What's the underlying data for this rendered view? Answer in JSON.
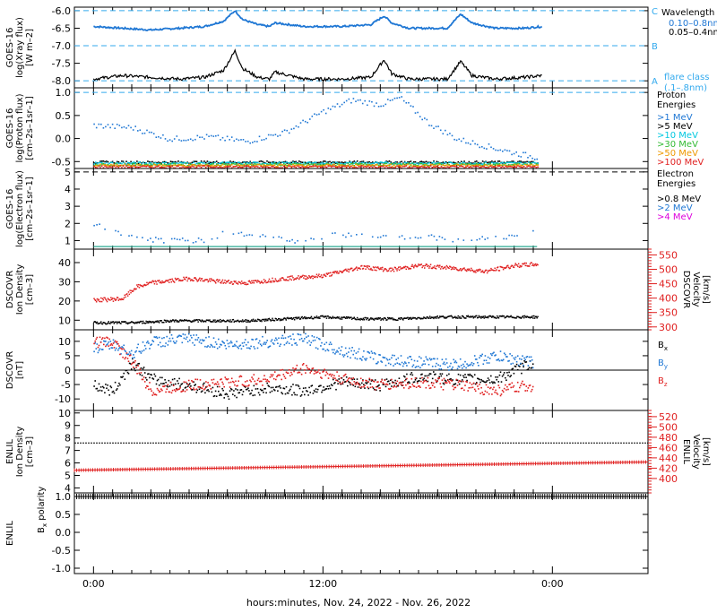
{
  "colors": {
    "black": "#000000",
    "blue": "#1f77d4",
    "lightblue": "#33aaee",
    "cyan": "#00c8e0",
    "green": "#33bb33",
    "orange": "#ee9900",
    "red": "#e02020",
    "magenta": "#dd00dd"
  },
  "x_axis": {
    "label": "hours:minutes, Nov. 24, 2022 - Nov. 26, 2022",
    "ticks": [
      "0:00",
      "12:00",
      "0:00"
    ],
    "range_hours": [
      -1,
      29
    ]
  },
  "chart_data": [
    {
      "id": "xray",
      "type": "line",
      "ylabel": [
        "GOES-16",
        "log(Xray flux)",
        "[W m–2]"
      ],
      "yticks": [
        "-6.0",
        "-6.5",
        "-7.0",
        "-7.5",
        "-8.0"
      ],
      "ylim": [
        -8.2,
        -5.9
      ],
      "legend_title": "Wavelength",
      "flare_classes": [
        {
          "label": "C",
          "value": -6.0
        },
        {
          "label": "B",
          "value": -7.0
        },
        {
          "label": "A",
          "value": -8.0
        }
      ],
      "flare_note": [
        "flare class",
        "(.1–.8nm)"
      ],
      "series": [
        {
          "name": "0.10–0.8nm",
          "color_key": "blue",
          "x": [
            0,
            1.5,
            3,
            4.5,
            5.8,
            6.8,
            7.4,
            7.8,
            8.6,
            9.2,
            9.5,
            11,
            13,
            14.5,
            15.2,
            15.6,
            16.5,
            18.5,
            19.2,
            19.8,
            21,
            22.5,
            23.5
          ],
          "y": [
            -6.45,
            -6.5,
            -6.55,
            -6.5,
            -6.45,
            -6.3,
            -6.0,
            -6.25,
            -6.4,
            -6.45,
            -6.35,
            -6.45,
            -6.45,
            -6.4,
            -6.15,
            -6.35,
            -6.5,
            -6.5,
            -6.1,
            -6.35,
            -6.5,
            -6.5,
            -6.45
          ]
        },
        {
          "name": "0.05–0.4nm",
          "color_key": "black",
          "x": [
            0,
            1.5,
            3,
            4.5,
            5.8,
            6.8,
            7.4,
            7.8,
            8.6,
            9.2,
            9.5,
            11,
            13,
            14.5,
            15.2,
            15.6,
            16.5,
            18.5,
            19.2,
            19.8,
            21,
            22.5,
            23.5
          ],
          "y": [
            -7.95,
            -7.85,
            -7.9,
            -7.95,
            -7.9,
            -7.7,
            -7.15,
            -7.65,
            -7.9,
            -7.95,
            -7.75,
            -7.95,
            -7.95,
            -7.9,
            -7.4,
            -7.8,
            -7.95,
            -7.95,
            -7.45,
            -7.85,
            -7.95,
            -7.9,
            -7.85
          ]
        }
      ]
    },
    {
      "id": "proton",
      "type": "scatter",
      "ylabel": [
        "GOES-16",
        "log(Proton flux)",
        "[cm–2s–1sr–1]"
      ],
      "yticks": [
        "1.0",
        "0.5",
        "0.0",
        "-0.5"
      ],
      "ylim": [
        -0.65,
        1.1
      ],
      "legend_title": [
        "Proton",
        "Energies"
      ],
      "series": [
        {
          "name": ">1 MeV",
          "color_key": "blue",
          "x": [
            0,
            2,
            4,
            6,
            8,
            10,
            12,
            13.5,
            15,
            16,
            17.5,
            19,
            20.5,
            22,
            23.2
          ],
          "y": [
            0.3,
            0.25,
            0.0,
            0.05,
            -0.05,
            0.15,
            0.6,
            0.85,
            0.75,
            0.9,
            0.35,
            0.0,
            -0.15,
            -0.3,
            -0.4
          ]
        },
        {
          "name": ">5 MeV",
          "color_key": "black",
          "x": [
            0,
            4,
            8,
            12,
            16,
            20,
            23.2
          ],
          "y": [
            -0.5,
            -0.5,
            -0.5,
            -0.5,
            -0.5,
            -0.5,
            -0.5
          ]
        },
        {
          "name": ">10 MeV",
          "color_key": "cyan",
          "x": [
            0,
            4,
            8,
            12,
            16,
            20,
            23.2
          ],
          "y": [
            -0.52,
            -0.52,
            -0.52,
            -0.52,
            -0.52,
            -0.52,
            -0.52
          ]
        },
        {
          "name": ">30 MeV",
          "color_key": "green",
          "x": [
            0,
            4,
            8,
            12,
            16,
            20,
            23.2
          ],
          "y": [
            -0.55,
            -0.55,
            -0.55,
            -0.55,
            -0.55,
            -0.55,
            -0.55
          ]
        },
        {
          "name": ">50 MeV",
          "color_key": "orange",
          "x": [
            0,
            4,
            8,
            12,
            16,
            20,
            23.2
          ],
          "y": [
            -0.57,
            -0.57,
            -0.57,
            -0.57,
            -0.57,
            -0.57,
            -0.57
          ]
        },
        {
          "name": ">100 MeV",
          "color_key": "red",
          "x": [
            0,
            4,
            8,
            12,
            16,
            20,
            23.2
          ],
          "y": [
            -0.6,
            -0.6,
            -0.6,
            -0.6,
            -0.6,
            -0.6,
            -0.6
          ]
        }
      ]
    },
    {
      "id": "electron",
      "type": "scatter",
      "ylabel": [
        "GOES-16",
        "log(Electron flux)",
        "[cm–2s–1sr–1]"
      ],
      "yticks": [
        "5",
        "4",
        "3",
        "2",
        "1"
      ],
      "ylim": [
        0.5,
        5.2
      ],
      "legend_title": [
        "Electron",
        "Energies"
      ],
      "threshold": 5.0,
      "series": [
        {
          "name": ">0.8 MeV",
          "color_key": "black",
          "x": [],
          "y": []
        },
        {
          "name": ">2 MeV",
          "color_key": "blue",
          "x": [
            0,
            0.5,
            2,
            4,
            6,
            7,
            9,
            11,
            12.5,
            15,
            17,
            19,
            21,
            23
          ],
          "y": [
            2.0,
            1.8,
            1.2,
            1.0,
            1.1,
            1.6,
            1.2,
            1.0,
            1.4,
            1.2,
            1.3,
            1.1,
            1.2,
            1.5
          ]
        },
        {
          "name": ">4 MeV",
          "color_key": "magenta",
          "x": [],
          "y": []
        }
      ]
    },
    {
      "id": "dscovr_plasma",
      "type": "scatter",
      "ylabel": [
        "DSCOVR",
        "Ion Density",
        "[cm–3]"
      ],
      "ylabel_right": [
        "DSCOVR",
        "Velocity",
        "[km/s]"
      ],
      "yticks": [
        "40",
        "30",
        "20",
        "10"
      ],
      "ylim": [
        5,
        47
      ],
      "yticks_right": [
        "550",
        "500",
        "450",
        "400",
        "350",
        "300"
      ],
      "ylim_right": [
        290,
        570
      ],
      "series": [
        {
          "name": "Ion Density",
          "color_key": "black",
          "x": [
            0,
            2,
            4,
            6,
            8,
            10,
            12,
            14,
            16,
            18,
            20,
            22,
            23.2
          ],
          "y": [
            9,
            9,
            10,
            10,
            10,
            11,
            12,
            11,
            11,
            12,
            12,
            12,
            12
          ]
        },
        {
          "name": "Velocity",
          "color_key": "red",
          "axis": "right",
          "x": [
            0,
            1.5,
            2.2,
            3,
            5,
            6.5,
            8,
            10,
            12,
            14,
            15.5,
            17,
            19,
            20.5,
            22,
            23.2
          ],
          "y": [
            395,
            400,
            440,
            455,
            470,
            460,
            455,
            470,
            480,
            510,
            500,
            515,
            505,
            495,
            515,
            520
          ]
        }
      ]
    },
    {
      "id": "dscovr_mag",
      "type": "scatter",
      "ylabel": [
        "DSCOVR",
        "[nT]"
      ],
      "yticks": [
        "10",
        "5",
        "0",
        "-5",
        "-10"
      ],
      "ylim": [
        -14,
        14
      ],
      "series": [
        {
          "name": "Bx",
          "color_key": "black",
          "x": [
            0,
            1,
            2,
            3,
            5,
            7,
            9,
            11,
            13,
            15,
            17,
            19,
            21,
            23
          ],
          "y": [
            -5,
            -7,
            3,
            -3,
            -5,
            -8,
            -6,
            -7,
            -4,
            -5,
            -2,
            -3,
            -3,
            3
          ]
        },
        {
          "name": "By",
          "color_key": "blue",
          "x": [
            0,
            1,
            2,
            3,
            5,
            7,
            9,
            11,
            13,
            15,
            17,
            19,
            21,
            23
          ],
          "y": [
            8,
            9,
            6,
            10,
            11,
            9,
            10,
            11,
            7,
            4,
            3,
            2,
            5,
            3
          ]
        },
        {
          "name": "Bz",
          "color_key": "red",
          "x": [
            0,
            1,
            2,
            3,
            5,
            7,
            9,
            11,
            13,
            15,
            17,
            19,
            21,
            23
          ],
          "y": [
            10,
            10,
            3,
            -7,
            -5,
            -4,
            -3,
            1,
            -3,
            -5,
            -4,
            -5,
            -7,
            -5
          ]
        }
      ],
      "legend_labels": [
        {
          "main": "B",
          "sub": "x",
          "color_key": "black"
        },
        {
          "main": "B",
          "sub": "y",
          "color_key": "blue"
        },
        {
          "main": "B",
          "sub": "z",
          "color_key": "red"
        }
      ]
    },
    {
      "id": "enlil_plasma",
      "type": "line",
      "ylabel": [
        "ENLIL",
        "Ion Density",
        "[cm–3]"
      ],
      "ylabel_right": [
        "ENLIL",
        "Velocity",
        "[km/s]"
      ],
      "yticks": [
        "10",
        "9",
        "8",
        "7",
        "6",
        "5",
        "4"
      ],
      "ylim": [
        3.6,
        10.2
      ],
      "yticks_right": [
        "520",
        "500",
        "480",
        "460",
        "440",
        "420",
        "400"
      ],
      "ylim_right": [
        372,
        532
      ],
      "series": [
        {
          "name": "Ion Density",
          "color_key": "black",
          "x": [
            -1,
            29
          ],
          "y": [
            7.6,
            7.6
          ]
        },
        {
          "name": "Velocity",
          "color_key": "red",
          "axis": "right",
          "x": [
            -1,
            29
          ],
          "y": [
            416,
            432
          ]
        }
      ]
    },
    {
      "id": "enlil_bx",
      "type": "line",
      "ylabel": [
        "ENLIL",
        "Bx polarity"
      ],
      "ylabel_main": "B",
      "ylabel_sub": "x",
      "ylabel_tail": " polarity",
      "yticks": [
        "1.0",
        "0.5",
        "0.0",
        "-0.5",
        "-1.0"
      ],
      "ylim": [
        -1.15,
        1.1
      ],
      "series": [
        {
          "name": "Bx polarity",
          "color_key": "black",
          "x": [
            -1,
            29
          ],
          "y": [
            1.0,
            1.0
          ]
        }
      ]
    }
  ]
}
